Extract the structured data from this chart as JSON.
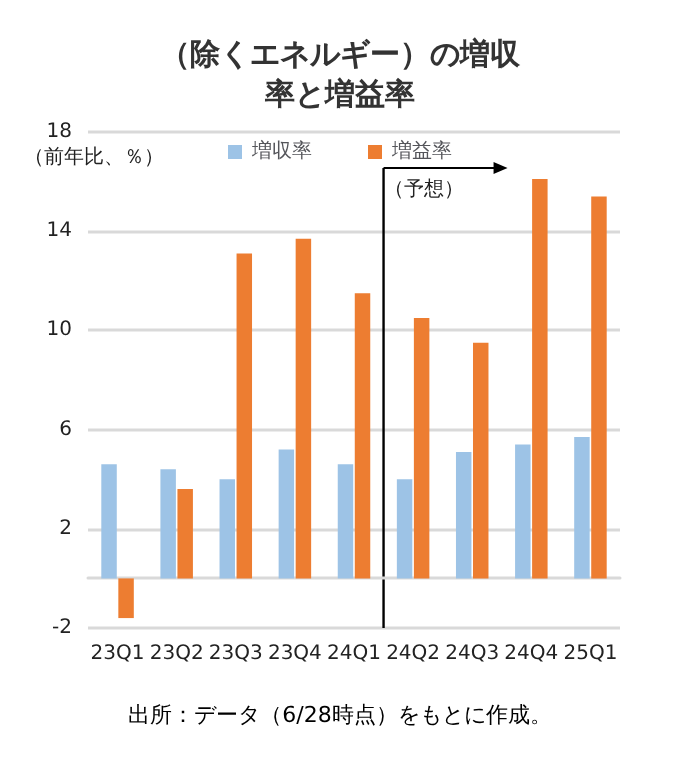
{
  "chart_data": {
    "type": "bar",
    "title": "（除くエネルギー）の増収率と増益率",
    "ylabel": "（前年比、％）",
    "categories": [
      "23Q1",
      "23Q2",
      "23Q3",
      "23Q4",
      "24Q1",
      "24Q2",
      "24Q3",
      "24Q4",
      "25Q1"
    ],
    "series": [
      {
        "name": "増収率",
        "color": "#9dc3e6",
        "values": [
          4.6,
          4.4,
          4.0,
          5.2,
          4.6,
          4.0,
          5.1,
          5.4,
          5.7
        ]
      },
      {
        "name": "増益率",
        "color": "#ed7d31",
        "values": [
          -1.6,
          3.6,
          13.1,
          13.7,
          11.5,
          10.5,
          9.5,
          16.1,
          15.4
        ]
      }
    ],
    "ylim": [
      -2,
      18
    ],
    "yticks": [
      -2,
      2,
      6,
      10,
      14,
      18
    ],
    "grid": "y",
    "legend": "top",
    "ref_lines": [
      {
        "axis": "x",
        "value": "24Q2",
        "label": "（予想）",
        "color": "#000000"
      }
    ],
    "annotations": [
      "出所：データ（6/28時点）をもとに作成。"
    ]
  }
}
